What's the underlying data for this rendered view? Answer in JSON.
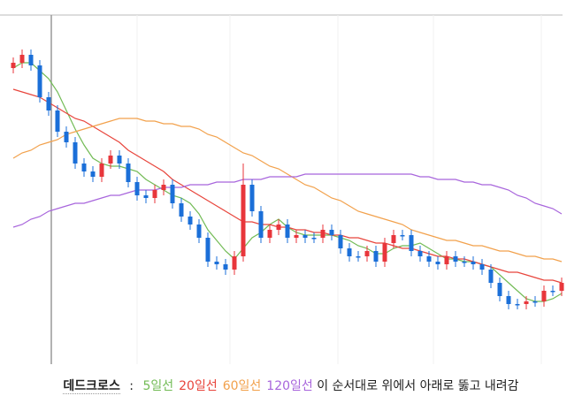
{
  "chart_data": {
    "type": "candlestick",
    "title": "데드크로스",
    "title_separator": ":",
    "caption_suffix": "이 순서대로 위에서 아래로 뚫고 내려감",
    "ylim": [
      0,
      130
    ],
    "up_color": "#e8363b",
    "down_color": "#1b6fd8",
    "categories": [
      null,
      null,
      null,
      null,
      null,
      null,
      null,
      null,
      null,
      null,
      null,
      null,
      null,
      null,
      null,
      null,
      null,
      null,
      null,
      null,
      null,
      null,
      null,
      null,
      null,
      null,
      null,
      null,
      null,
      null,
      null,
      null,
      null,
      null,
      null,
      null,
      null,
      null,
      null,
      null,
      null,
      null,
      null,
      null,
      null,
      null,
      null,
      null,
      null,
      null,
      null,
      null,
      null,
      null,
      null,
      null,
      null,
      null,
      null,
      null,
      null,
      null,
      null
    ],
    "open": [
      110,
      112,
      115,
      111,
      99,
      94,
      86,
      82,
      74,
      71,
      69,
      74,
      77,
      74,
      67,
      62,
      61,
      64,
      66,
      59,
      54,
      51,
      46,
      37,
      36,
      34,
      39,
      66,
      56,
      46,
      49,
      51,
      46,
      47,
      46,
      46,
      49,
      47,
      42,
      39,
      39,
      41,
      37,
      44,
      47,
      47,
      41,
      39,
      37,
      36,
      39,
      37,
      37,
      36,
      34,
      29,
      24,
      21,
      21,
      22,
      22,
      26,
      26
    ],
    "close": [
      112,
      115,
      111,
      99,
      94,
      86,
      82,
      74,
      71,
      69,
      74,
      77,
      74,
      67,
      62,
      61,
      64,
      66,
      59,
      54,
      51,
      46,
      37,
      36,
      34,
      39,
      66,
      56,
      46,
      49,
      51,
      46,
      47,
      46,
      46,
      49,
      47,
      42,
      39,
      39,
      41,
      37,
      44,
      47,
      47,
      41,
      39,
      37,
      36,
      39,
      37,
      37,
      36,
      34,
      29,
      24,
      21,
      21,
      22,
      22,
      26,
      26,
      29
    ],
    "high": [
      114,
      117,
      117,
      113,
      101,
      96,
      88,
      84,
      76,
      73,
      76,
      79,
      79,
      76,
      69,
      64,
      66,
      68,
      68,
      61,
      56,
      53,
      48,
      39,
      38,
      41,
      74,
      68,
      58,
      51,
      53,
      53,
      49,
      49,
      48,
      51,
      51,
      49,
      44,
      41,
      43,
      43,
      46,
      49,
      49,
      49,
      43,
      41,
      39,
      41,
      41,
      39,
      39,
      38,
      36,
      31,
      26,
      23,
      24,
      24,
      28,
      28,
      31
    ],
    "low": [
      108,
      110,
      109,
      97,
      92,
      84,
      80,
      72,
      69,
      67,
      67,
      72,
      72,
      65,
      60,
      59,
      59,
      62,
      57,
      52,
      49,
      44,
      35,
      34,
      32,
      32,
      37,
      54,
      44,
      44,
      47,
      44,
      44,
      44,
      44,
      44,
      45,
      40,
      37,
      37,
      37,
      35,
      35,
      42,
      45,
      39,
      37,
      35,
      34,
      34,
      35,
      35,
      34,
      32,
      27,
      22,
      19,
      19,
      19,
      20,
      20,
      24,
      24
    ],
    "series": [
      {
        "name": "5일선",
        "color": "#72bb55",
        "values": [
          110,
          112,
          112,
          109,
          106,
          101,
          94,
          87,
          81,
          76,
          74,
          73,
          73,
          72,
          71,
          68,
          66,
          64,
          62,
          61,
          59,
          55,
          49,
          45,
          41,
          38,
          42,
          46,
          48,
          51,
          53,
          50,
          48,
          47,
          47,
          47,
          47,
          46,
          45,
          43,
          42,
          40,
          40,
          42,
          43,
          43,
          44,
          42,
          40,
          38,
          38,
          37,
          37,
          36,
          35,
          32,
          29,
          26,
          23,
          22,
          22,
          23,
          25
        ]
      },
      {
        "name": "20일선",
        "color": "#e8453c",
        "values": [
          102,
          101,
          100,
          99,
          97,
          95,
          93,
          91,
          90,
          88,
          86,
          84,
          82,
          79,
          77,
          75,
          73,
          71,
          68,
          66,
          64,
          62,
          60,
          58,
          56,
          54,
          52,
          52,
          51,
          51,
          50,
          50,
          49,
          49,
          48,
          48,
          47,
          47,
          46,
          46,
          45,
          44,
          44,
          43,
          42,
          42,
          41,
          40,
          39,
          39,
          38,
          38,
          37,
          36,
          35,
          34,
          33,
          33,
          32,
          31,
          30,
          30,
          29
        ]
      },
      {
        "name": "60일선",
        "color": "#f2a14c",
        "values": [
          76,
          78,
          79,
          81,
          82,
          83,
          85,
          86,
          87,
          88,
          89,
          90,
          91,
          91,
          91,
          90,
          90,
          89,
          89,
          88,
          88,
          87,
          85,
          84,
          82,
          80,
          78,
          77,
          75,
          73,
          72,
          70,
          68,
          66,
          65,
          63,
          61,
          60,
          58,
          56,
          55,
          54,
          53,
          52,
          51,
          49,
          48,
          47,
          46,
          45,
          45,
          44,
          43,
          43,
          42,
          41,
          41,
          40,
          39,
          39,
          38,
          38,
          37
        ]
      },
      {
        "name": "120일선",
        "color": "#a865dc",
        "values": [
          50,
          51,
          53,
          54,
          56,
          57,
          58,
          59,
          59,
          60,
          61,
          62,
          62,
          63,
          64,
          64,
          64,
          65,
          65,
          65,
          66,
          66,
          66,
          67,
          67,
          67,
          68,
          68,
          68,
          69,
          69,
          69,
          69,
          70,
          70,
          70,
          70,
          70,
          70,
          70,
          70,
          70,
          70,
          70,
          70,
          70,
          69,
          69,
          68,
          68,
          68,
          67,
          67,
          66,
          66,
          65,
          64,
          62,
          61,
          59,
          58,
          57,
          55
        ]
      }
    ]
  }
}
